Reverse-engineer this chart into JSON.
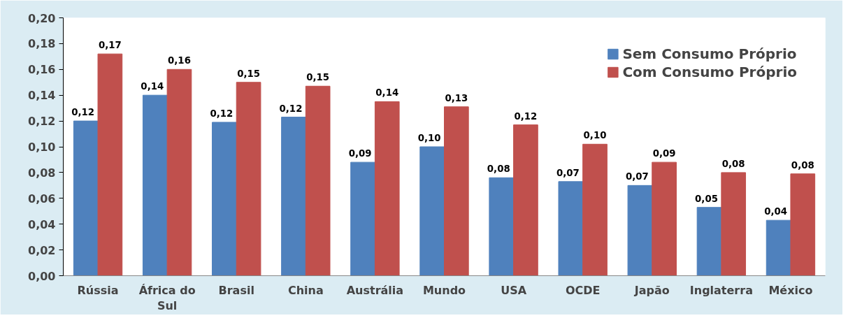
{
  "chart_data": {
    "type": "bar",
    "categories": [
      "Rússia",
      "África do Sul",
      "Brasil",
      "China",
      "Austrália",
      "Mundo",
      "USA",
      "OCDE",
      "Japão",
      "Inglaterra",
      "México"
    ],
    "series": [
      {
        "name": "Sem Consumo Próprio",
        "color": "#4f81bd",
        "values": [
          0.12,
          0.14,
          0.119,
          0.123,
          0.088,
          0.1,
          0.076,
          0.073,
          0.07,
          0.053,
          0.043
        ],
        "value_labels": [
          "0,12",
          "0,14",
          "0,12",
          "0,12",
          "0,09",
          "0,10",
          "0,08",
          "0,07",
          "0,07",
          "0,05",
          "0,04"
        ]
      },
      {
        "name": "Com Consumo Próprio",
        "color": "#c0504d",
        "values": [
          0.172,
          0.16,
          0.15,
          0.147,
          0.135,
          0.131,
          0.117,
          0.102,
          0.088,
          0.08,
          0.079
        ],
        "value_labels": [
          "0,17",
          "0,16",
          "0,15",
          "0,15",
          "0,14",
          "0,13",
          "0,12",
          "0,10",
          "0,09",
          "0,08",
          "0,08"
        ]
      }
    ],
    "ylim": [
      0,
      0.2
    ],
    "yticks": [
      {
        "value": 0,
        "label": "0,00"
      },
      {
        "value": 0.02,
        "label": "0,02"
      },
      {
        "value": 0.04,
        "label": "0,04"
      },
      {
        "value": 0.06,
        "label": "0,06"
      },
      {
        "value": 0.08,
        "label": "0,08"
      },
      {
        "value": 0.1,
        "label": "0,10"
      },
      {
        "value": 0.12,
        "label": "0,12"
      },
      {
        "value": 0.14,
        "label": "0,14"
      },
      {
        "value": 0.16,
        "label": "0,16"
      },
      {
        "value": 0.18,
        "label": "0,18"
      },
      {
        "value": 0.2,
        "label": "0,20"
      }
    ],
    "grid": false,
    "legend": "top right"
  }
}
